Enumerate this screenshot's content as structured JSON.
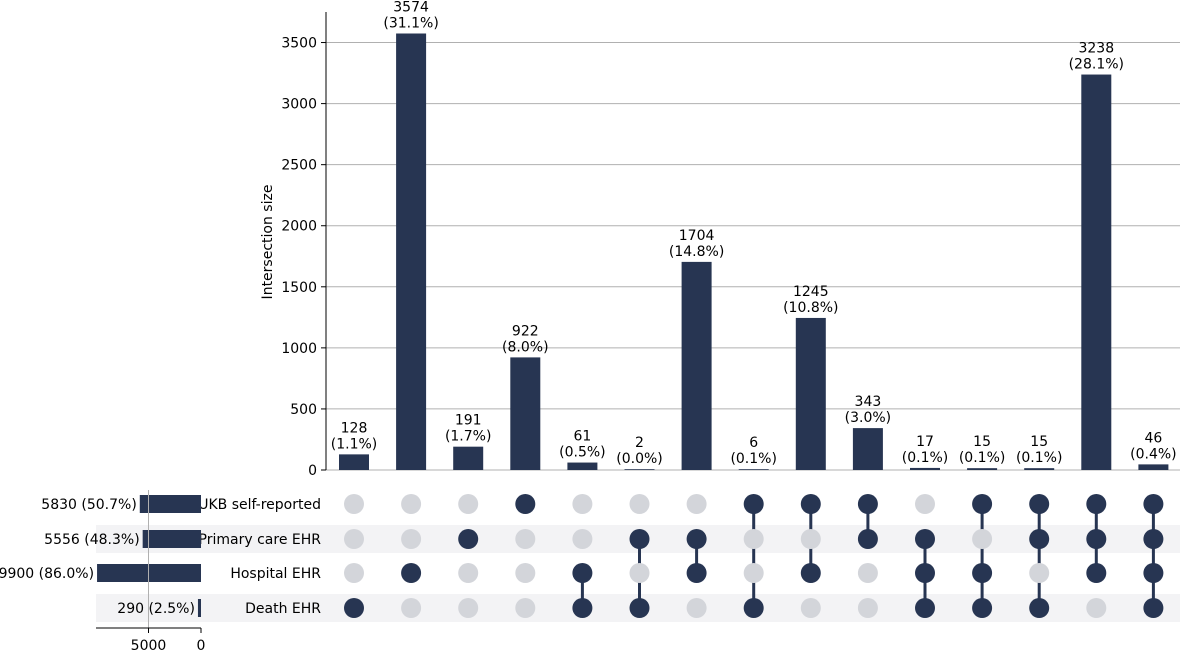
{
  "chart_data": {
    "type": "upset",
    "ylabel": "Intersection size",
    "ylim": [
      0,
      3750
    ],
    "yticks": [
      0,
      500,
      1000,
      1500,
      2000,
      2500,
      3000,
      3500
    ],
    "grid": true,
    "bar_color": "#273552",
    "inactive_dot_color": "#d3d5da",
    "stripe_color": "#f3f3f5",
    "sets": [
      {
        "name": "UKB self-reported",
        "size": 5830,
        "label": "5830 (50.7%)"
      },
      {
        "name": "Primary care EHR",
        "size": 5556,
        "label": "5556 (48.3%)"
      },
      {
        "name": "Hospital EHR",
        "size": 9900,
        "label": "9900 (86.0%)"
      },
      {
        "name": "Death EHR",
        "size": 290,
        "label": "290 (2.5%)"
      }
    ],
    "set_size_ticks": [
      "5000",
      "0"
    ],
    "intersections": [
      {
        "value": 128,
        "count": "128",
        "percent": "(1.1%)",
        "members": [
          3
        ]
      },
      {
        "value": 3574,
        "count": "3574",
        "percent": "(31.1%)",
        "members": [
          2
        ]
      },
      {
        "value": 191,
        "count": "191",
        "percent": "(1.7%)",
        "members": [
          1
        ]
      },
      {
        "value": 922,
        "count": "922",
        "percent": "(8.0%)",
        "members": [
          0
        ]
      },
      {
        "value": 61,
        "count": "61",
        "percent": "(0.5%)",
        "members": [
          2,
          3
        ]
      },
      {
        "value": 2,
        "count": "2",
        "percent": "(0.0%)",
        "members": [
          1,
          3
        ]
      },
      {
        "value": 1704,
        "count": "1704",
        "percent": "(14.8%)",
        "members": [
          1,
          2
        ]
      },
      {
        "value": 6,
        "count": "6",
        "percent": "(0.1%)",
        "members": [
          0,
          3
        ]
      },
      {
        "value": 1245,
        "count": "1245",
        "percent": "(10.8%)",
        "members": [
          0,
          2
        ]
      },
      {
        "value": 343,
        "count": "343",
        "percent": "(3.0%)",
        "members": [
          0,
          1
        ]
      },
      {
        "value": 17,
        "count": "17",
        "percent": "(0.1%)",
        "members": [
          1,
          2,
          3
        ]
      },
      {
        "value": 15,
        "count": "15",
        "percent": "(0.1%)",
        "members": [
          0,
          2,
          3
        ]
      },
      {
        "value": 15,
        "count": "15",
        "percent": "(0.1%)",
        "members": [
          0,
          1,
          3
        ]
      },
      {
        "value": 3238,
        "count": "3238",
        "percent": "(28.1%)",
        "members": [
          0,
          1,
          2
        ]
      },
      {
        "value": 46,
        "count": "46",
        "percent": "(0.4%)",
        "members": [
          0,
          1,
          2,
          3
        ]
      }
    ]
  }
}
